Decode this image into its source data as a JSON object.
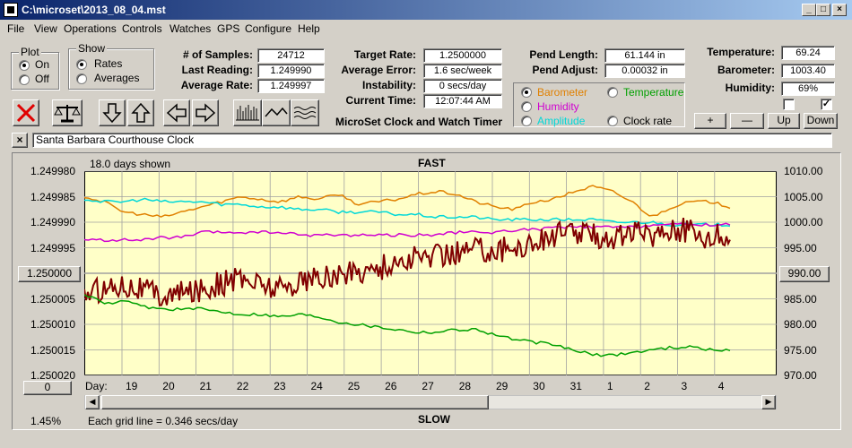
{
  "window": {
    "title": "C:\\microset\\2013_08_04.mst"
  },
  "menu": [
    "File",
    "View",
    "Operations",
    "Controls",
    "Watches",
    "GPS",
    "Configure",
    "Help"
  ],
  "plot_group": {
    "title": "Plot",
    "on": "On",
    "off": "Off",
    "selected": "On"
  },
  "show_group": {
    "title": "Show",
    "rates": "Rates",
    "averages": "Averages",
    "selected": "Rates"
  },
  "stats": {
    "samples_label": "# of Samples:",
    "samples": "24712",
    "last_label": "Last Reading:",
    "last": "1.249990",
    "avg_label": "Average Rate:",
    "avg": "1.249997",
    "target_label": "Target Rate:",
    "target": "1.2500000",
    "error_label": "Average Error:",
    "error": "1.6 sec/week",
    "instab_label": "Instability:",
    "instab": "0 secs/day",
    "time_label": "Current Time:",
    "time": "12:07:44 AM",
    "pend_len_label": "Pend Length:",
    "pend_len": "61.144 in",
    "pend_adj_label": "Pend Adjust:",
    "pend_adj": "0.00032 in",
    "temp_label": "Temperature:",
    "temp": "69.24",
    "baro_label": "Barometer:",
    "baro": "1003.40",
    "hum_label": "Humidity:",
    "hum": "69%"
  },
  "app_name": "MicroSet Clock and Watch Timer",
  "channels": {
    "barometer": {
      "label": "Barometer",
      "color": "#e08000"
    },
    "temperature": {
      "label": "Temperature",
      "color": "#00a000"
    },
    "humidity": {
      "label": "Humidity",
      "color": "#d000d0"
    },
    "amplitude": {
      "label": "Amplitude",
      "color": "#00d8d8"
    },
    "clock_rate": {
      "label": "Clock rate",
      "color": "#000000"
    },
    "selected": "Barometer"
  },
  "buttons": {
    "plus": "+",
    "minus": "—",
    "up": "Up",
    "down": "Down",
    "close_x": "×"
  },
  "clock_name": "Santa Barbara Courthouse Clock",
  "chart": {
    "days_shown": "18.0 days shown",
    "top_label": "FAST",
    "bottom_label": "SLOW",
    "center_btn": "1.250000",
    "right_center_btn": "990.00",
    "zero_btn": "0",
    "percent": "1.45%",
    "grid_note": "Each grid line = 0.346 secs/day",
    "day_label": "Day:",
    "colors": {
      "bg": "#ffffc8",
      "clock": "#800000"
    }
  },
  "chart_data": {
    "type": "line",
    "x_ticks": [
      "19",
      "20",
      "21",
      "22",
      "23",
      "24",
      "25",
      "26",
      "27",
      "28",
      "29",
      "30",
      "31",
      "1",
      "2",
      "3",
      "4"
    ],
    "y_ticks": [
      "1.249980",
      "1.249985",
      "1.249990",
      "1.249995",
      "1.250000",
      "1.250005",
      "1.250010",
      "1.250015",
      "1.250020"
    ],
    "y2_ticks": [
      "1010.00",
      "1005.00",
      "1000.00",
      "995.00",
      "990.00",
      "985.00",
      "980.00",
      "975.00",
      "970.00"
    ],
    "ylim": [
      1.24998,
      1.25002
    ],
    "y2lim": [
      970,
      1010
    ],
    "grid": true,
    "series": [
      {
        "name": "Barometer",
        "color": "#e08000",
        "values": [
          1005.0,
          1004.0,
          1002.0,
          1001.5,
          1001.0,
          1002.0,
          1003.0,
          1004.0,
          1005.0,
          1004.5,
          1004.0,
          1005.0,
          1004.5,
          1005.5,
          1003.5,
          1004.0,
          1004.5,
          1005.5,
          1006.0,
          1005.5,
          1004.0,
          1003.0,
          1002.5,
          1004.0,
          1004.5,
          1006.0,
          1007.0,
          1006.0,
          1004.0,
          1001.0,
          1003.0,
          1004.0,
          1004.0,
          1003.0
        ]
      },
      {
        "name": "Amplitude",
        "color": "#00d8d8",
        "values": [
          1004.5,
          1004.0,
          1004.0,
          1004.5,
          1004.0,
          1004.0,
          1004.0,
          1003.5,
          1003.5,
          1003.0,
          1003.0,
          1002.5,
          1002.5,
          1002.0,
          1002.0,
          1002.0,
          1001.5,
          1001.5,
          1001.0,
          1001.0,
          1001.0,
          1000.5,
          1000.5,
          1000.5,
          1000.5,
          1000.5,
          1000.5,
          1000.0,
          1000.0,
          1000.0,
          999.5,
          999.5,
          999.5,
          999.5
        ]
      },
      {
        "name": "Humidity",
        "color": "#d000d0",
        "values": [
          996.5,
          996.5,
          996.5,
          996.5,
          997.0,
          997.0,
          998.0,
          998.0,
          998.0,
          998.0,
          998.0,
          997.5,
          997.5,
          997.5,
          997.5,
          997.5,
          997.5,
          997.5,
          997.5,
          998.0,
          998.0,
          998.0,
          998.5,
          998.5,
          999.0,
          999.0,
          999.0,
          999.0,
          999.0,
          999.5,
          999.5,
          999.5,
          999.5,
          999.5
        ]
      },
      {
        "name": "Clock rate",
        "color": "#800000",
        "values": [
          986.0,
          987.0,
          988.0,
          987.0,
          985.5,
          986.0,
          987.0,
          988.0,
          989.0,
          988.0,
          987.0,
          988.5,
          989.0,
          989.5,
          990.5,
          991.0,
          992.0,
          993.0,
          993.5,
          994.0,
          995.0,
          994.5,
          995.0,
          996.0,
          997.5,
          998.0,
          997.5,
          997.0,
          998.0,
          997.5,
          999.0,
          998.0,
          997.0,
          997.5
        ]
      },
      {
        "name": "Temperature",
        "color": "#00a000",
        "values": [
          986.0,
          984.0,
          984.5,
          983.5,
          983.0,
          983.0,
          983.0,
          982.5,
          982.0,
          982.0,
          981.5,
          982.0,
          981.5,
          980.5,
          980.0,
          979.5,
          979.0,
          978.5,
          978.5,
          979.0,
          979.0,
          978.0,
          977.0,
          976.5,
          976.0,
          975.0,
          974.0,
          974.0,
          974.5,
          975.0,
          975.5,
          975.5,
          975.0,
          975.0
        ]
      }
    ]
  }
}
